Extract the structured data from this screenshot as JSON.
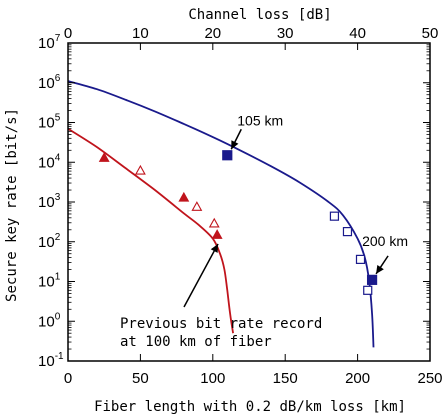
{
  "chart_data": {
    "type": "line",
    "xlabel": "Fiber length with 0.2 dB/km loss [km]",
    "ylabel": "Secure key rate [bit/s]",
    "x2label": "Channel loss [dB]",
    "xlim": [
      0,
      250
    ],
    "ylim_log10": [
      -1,
      7
    ],
    "y_scale": "log",
    "x_ticks": [
      0,
      50,
      100,
      150,
      200,
      250
    ],
    "x2_ticks": [
      0,
      10,
      20,
      30,
      40,
      50
    ],
    "y_tick_exponents": [
      -1,
      0,
      1,
      2,
      3,
      4,
      5,
      6,
      7
    ],
    "grid": false,
    "series": [
      {
        "color": "#1a1a8c",
        "curve_x": [
          0,
          20,
          40,
          60,
          80,
          100,
          120,
          140,
          160,
          180,
          190,
          200,
          205,
          208,
          210,
          211
        ],
        "curve_y": [
          1100000,
          690000,
          370000,
          190000,
          92000,
          43000,
          19000,
          8000,
          3100,
          1000,
          460,
          120,
          40,
          10,
          1.5,
          0.22
        ],
        "points_open_square_x": [
          184,
          193,
          202,
          207
        ],
        "points_open_square_y": [
          440,
          180,
          36,
          6
        ],
        "points_filled_square_x": [
          110,
          210
        ],
        "points_filled_square_y": [
          15000,
          11
        ]
      },
      {
        "color": "#c0141c",
        "curve_x": [
          0,
          20,
          40,
          60,
          80,
          90,
          100,
          105,
          108,
          110,
          112,
          114
        ],
        "curve_y": [
          70000,
          24000,
          7000,
          2000,
          520,
          270,
          120,
          50,
          20,
          6,
          1.5,
          0.5
        ],
        "points_filled_triangle_x": [
          25,
          80,
          103
        ],
        "points_filled_triangle_y": [
          13000,
          1300,
          150
        ],
        "points_open_triangle_x": [
          50,
          89,
          101
        ],
        "points_open_triangle_y": [
          6200,
          760,
          290
        ]
      }
    ],
    "annotations": [
      {
        "text": "105 km",
        "target_x": 110,
        "target_y": 15000
      },
      {
        "text": "200 km",
        "target_x": 210,
        "target_y": 11
      },
      {
        "lines": [
          "Previous bit rate record",
          "at 100 km of fiber"
        ],
        "target_x": 105,
        "target_y": 140
      }
    ]
  }
}
